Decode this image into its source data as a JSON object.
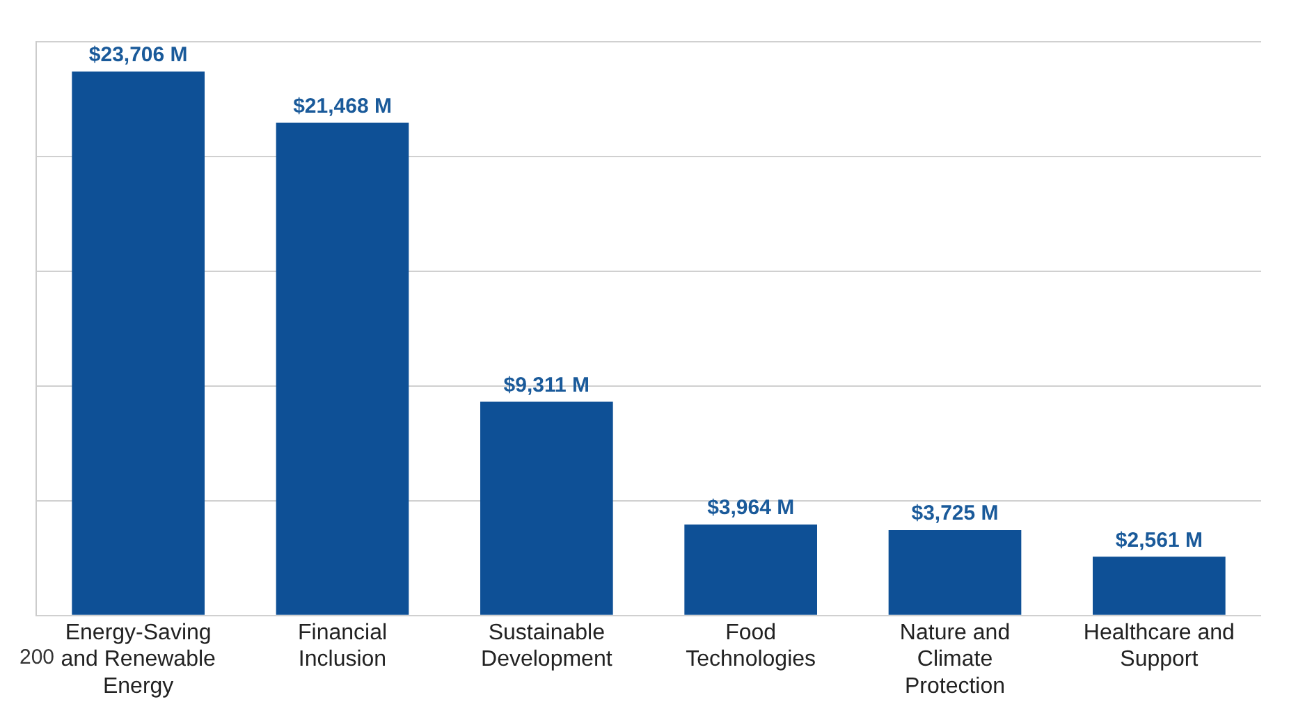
{
  "chart_data": {
    "type": "bar",
    "categories": [
      "Energy-Saving and Renewable Energy",
      "Financial Inclusion",
      "Sustainable Development",
      "Food Technologies",
      "Nature and Climate Protection",
      "Healthcare and Support"
    ],
    "values": [
      23706,
      21468,
      9311,
      3964,
      3725,
      2561
    ],
    "value_labels": [
      "$23,706 M",
      "$21,468 M",
      "$9,311 M",
      "$3,964 M",
      "$3,725 M",
      "$2,561 M"
    ],
    "color": "#0e5096",
    "ylim": [
      0,
      25000
    ],
    "yticks": [
      {
        "value": 0,
        "label": null
      },
      {
        "value": 5000,
        "label": null
      },
      {
        "value": 10000,
        "label": null
      },
      {
        "value": 15000,
        "label": null
      },
      {
        "value": 20000,
        "label": null
      },
      {
        "value": 25000,
        "label": null
      }
    ],
    "grid": "y",
    "legend": false,
    "annotations": [
      "200"
    ]
  }
}
